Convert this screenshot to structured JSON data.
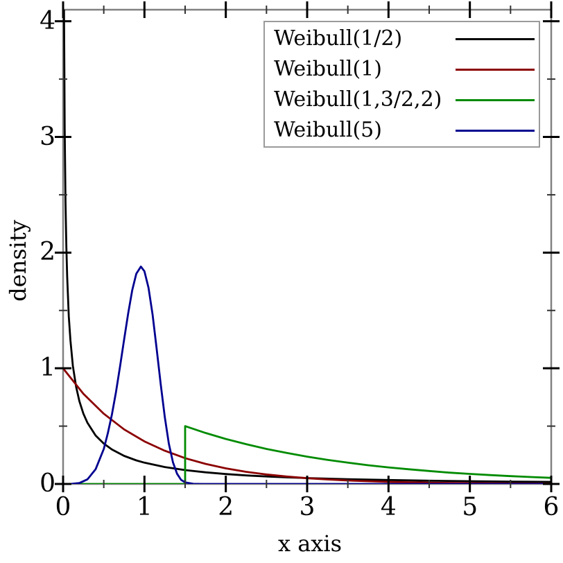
{
  "chart_data": {
    "type": "line",
    "title": "",
    "xlabel": "x axis",
    "ylabel": "density",
    "xlim": [
      0,
      6
    ],
    "ylim": [
      0,
      4.1
    ],
    "x_ticks": [
      0,
      1,
      2,
      3,
      4,
      5,
      6
    ],
    "y_ticks": [
      0,
      1,
      2,
      3,
      4
    ],
    "x_minor_step": 0.5,
    "y_minor_step": 0.5,
    "grid": false,
    "legend_position": "top-right",
    "frame_color": "#808080",
    "tick_color": "#000000",
    "minor_tick_color": "#333333",
    "series": [
      {
        "name": "Weibull(1/2)",
        "color": "#000000",
        "points": [
          [
            0.009,
            4.6
          ],
          [
            0.0115,
            4.1
          ],
          [
            0.015,
            3.61
          ],
          [
            0.02,
            3.07
          ],
          [
            0.03,
            2.43
          ],
          [
            0.04,
            2.05
          ],
          [
            0.05,
            1.79
          ],
          [
            0.07,
            1.45
          ],
          [
            0.09,
            1.24
          ],
          [
            0.12,
            1.02
          ],
          [
            0.16,
            0.84
          ],
          [
            0.2,
            0.715
          ],
          [
            0.25,
            0.607
          ],
          [
            0.3,
            0.528
          ],
          [
            0.4,
            0.419
          ],
          [
            0.5,
            0.349
          ],
          [
            0.6,
            0.298
          ],
          [
            0.75,
            0.243
          ],
          [
            0.9,
            0.204
          ],
          [
            1.0,
            0.184
          ],
          [
            1.25,
            0.146
          ],
          [
            1.5,
            0.12
          ],
          [
            1.75,
            0.101
          ],
          [
            2.0,
            0.086
          ],
          [
            2.25,
            0.074
          ],
          [
            2.5,
            0.065
          ],
          [
            2.75,
            0.057
          ],
          [
            3.0,
            0.051
          ],
          [
            3.5,
            0.041
          ],
          [
            4.0,
            0.034
          ],
          [
            4.5,
            0.028
          ],
          [
            5.0,
            0.024
          ],
          [
            5.5,
            0.02
          ],
          [
            6.0,
            0.018
          ]
        ]
      },
      {
        "name": "Weibull(1)",
        "color": "#8b0000",
        "points": [
          [
            0,
            1.0
          ],
          [
            0.25,
            0.779
          ],
          [
            0.5,
            0.607
          ],
          [
            0.75,
            0.472
          ],
          [
            1.0,
            0.368
          ],
          [
            1.25,
            0.287
          ],
          [
            1.5,
            0.223
          ],
          [
            1.75,
            0.174
          ],
          [
            2.0,
            0.135
          ],
          [
            2.25,
            0.105
          ],
          [
            2.5,
            0.082
          ],
          [
            2.75,
            0.064
          ],
          [
            3.0,
            0.05
          ],
          [
            3.25,
            0.039
          ],
          [
            3.5,
            0.03
          ],
          [
            4.0,
            0.018
          ],
          [
            4.5,
            0.011
          ],
          [
            5.0,
            0.007
          ],
          [
            5.5,
            0.004
          ],
          [
            6.0,
            0.0025
          ]
        ]
      },
      {
        "name": "Weibull(1,3/2,2)",
        "color": "#008b00",
        "points": [
          [
            0,
            0
          ],
          [
            1.5,
            0
          ],
          [
            1.5,
            0.5
          ],
          [
            1.75,
            0.441
          ],
          [
            2.0,
            0.389
          ],
          [
            2.25,
            0.344
          ],
          [
            2.5,
            0.303
          ],
          [
            2.75,
            0.268
          ],
          [
            3.0,
            0.236
          ],
          [
            3.25,
            0.208
          ],
          [
            3.5,
            0.184
          ],
          [
            3.75,
            0.162
          ],
          [
            4.0,
            0.143
          ],
          [
            4.25,
            0.127
          ],
          [
            4.5,
            0.112
          ],
          [
            4.75,
            0.098
          ],
          [
            5.0,
            0.087
          ],
          [
            5.25,
            0.077
          ],
          [
            5.5,
            0.068
          ],
          [
            5.75,
            0.06
          ],
          [
            6.0,
            0.053
          ]
        ]
      },
      {
        "name": "Weibull(5)",
        "color": "#000090",
        "points": [
          [
            0,
            0
          ],
          [
            0.1,
            0.0005
          ],
          [
            0.2,
            0.008
          ],
          [
            0.3,
            0.04
          ],
          [
            0.4,
            0.127
          ],
          [
            0.5,
            0.303
          ],
          [
            0.55,
            0.438
          ],
          [
            0.6,
            0.6
          ],
          [
            0.65,
            0.795
          ],
          [
            0.7,
            1.015
          ],
          [
            0.75,
            1.248
          ],
          [
            0.8,
            1.476
          ],
          [
            0.85,
            1.675
          ],
          [
            0.9,
            1.818
          ],
          [
            0.956,
            1.879
          ],
          [
            1.0,
            1.839
          ],
          [
            1.05,
            1.696
          ],
          [
            1.1,
            1.463
          ],
          [
            1.15,
            1.17
          ],
          [
            1.2,
            0.862
          ],
          [
            1.25,
            0.577
          ],
          [
            1.3,
            0.349
          ],
          [
            1.35,
            0.188
          ],
          [
            1.4,
            0.089
          ],
          [
            1.45,
            0.036
          ],
          [
            1.5,
            0.013
          ],
          [
            1.6,
            0.001
          ],
          [
            1.7,
            0.0
          ],
          [
            2.0,
            0.0
          ],
          [
            6.0,
            0.0
          ]
        ]
      }
    ]
  }
}
